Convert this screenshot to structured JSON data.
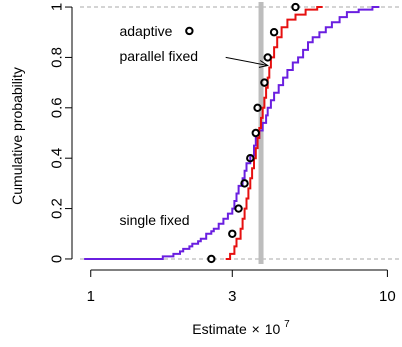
{
  "chart_data": {
    "type": "line",
    "title": "",
    "xlabel": "Estimate",
    "xlabel_multiplier": "×",
    "xlabel_base": "10",
    "xlabel_exponent": "7",
    "ylabel": "Cumulative probability",
    "xscale": "log",
    "xlim": [
      0.92,
      11.2
    ],
    "ylim": [
      -0.02,
      1.02
    ],
    "xticks": [
      1,
      3,
      10
    ],
    "xtick_labels": [
      "1",
      "3",
      "10"
    ],
    "yticks": [
      0,
      0.2,
      0.4,
      0.6,
      0.8,
      1
    ],
    "ytick_labels": [
      "0",
      "0.2",
      "0.4",
      "0.6",
      "0.8",
      "1"
    ],
    "ref_hlines": [
      0,
      1
    ],
    "true_value": 3.75,
    "annotations": [
      {
        "text": "adaptive",
        "x": 1.25,
        "y": 0.905
      },
      {
        "text": "parallel fixed",
        "x": 1.25,
        "y": 0.805
      },
      {
        "text": "single fixed",
        "x": 1.25,
        "y": 0.155
      }
    ],
    "arrow": {
      "from": [
        2.85,
        0.8
      ],
      "to": [
        3.95,
        0.768
      ]
    },
    "legend_marker": {
      "x": 2.15,
      "y": 0.905
    },
    "series": [
      {
        "key": "single",
        "color": "#6a1fe0",
        "points": [
          [
            0.95,
            0.0
          ],
          [
            1.7,
            0.0
          ],
          [
            1.75,
            0.01
          ],
          [
            1.9,
            0.02
          ],
          [
            2.0,
            0.03
          ],
          [
            2.05,
            0.04
          ],
          [
            2.15,
            0.05
          ],
          [
            2.2,
            0.06
          ],
          [
            2.3,
            0.07
          ],
          [
            2.35,
            0.08
          ],
          [
            2.45,
            0.1
          ],
          [
            2.55,
            0.11
          ],
          [
            2.6,
            0.12
          ],
          [
            2.7,
            0.14
          ],
          [
            2.8,
            0.16
          ],
          [
            2.9,
            0.18
          ],
          [
            3.0,
            0.2
          ],
          [
            3.05,
            0.23
          ],
          [
            3.1,
            0.26
          ],
          [
            3.15,
            0.29
          ],
          [
            3.25,
            0.32
          ],
          [
            3.3,
            0.35
          ],
          [
            3.35,
            0.38
          ],
          [
            3.45,
            0.41
          ],
          [
            3.55,
            0.45
          ],
          [
            3.6,
            0.48
          ],
          [
            3.7,
            0.51
          ],
          [
            3.8,
            0.54
          ],
          [
            3.9,
            0.57
          ],
          [
            3.95,
            0.6
          ],
          [
            4.05,
            0.63
          ],
          [
            4.15,
            0.66
          ],
          [
            4.3,
            0.69
          ],
          [
            4.45,
            0.72
          ],
          [
            4.6,
            0.75
          ],
          [
            4.8,
            0.78
          ],
          [
            5.0,
            0.8
          ],
          [
            5.2,
            0.83
          ],
          [
            5.4,
            0.86
          ],
          [
            5.6,
            0.88
          ],
          [
            5.9,
            0.9
          ],
          [
            6.2,
            0.92
          ],
          [
            6.5,
            0.94
          ],
          [
            6.9,
            0.96
          ],
          [
            7.3,
            0.98
          ],
          [
            8.0,
            0.99
          ],
          [
            8.9,
            1.0
          ],
          [
            9.4,
            1.0
          ]
        ]
      },
      {
        "key": "parallel",
        "color": "#e61010",
        "points": [
          [
            2.85,
            0.0
          ],
          [
            2.95,
            0.02
          ],
          [
            3.05,
            0.05
          ],
          [
            3.1,
            0.08
          ],
          [
            3.2,
            0.12
          ],
          [
            3.25,
            0.16
          ],
          [
            3.3,
            0.2
          ],
          [
            3.35,
            0.24
          ],
          [
            3.4,
            0.28
          ],
          [
            3.45,
            0.32
          ],
          [
            3.5,
            0.36
          ],
          [
            3.55,
            0.4
          ],
          [
            3.6,
            0.44
          ],
          [
            3.65,
            0.48
          ],
          [
            3.7,
            0.52
          ],
          [
            3.75,
            0.56
          ],
          [
            3.8,
            0.6
          ],
          [
            3.85,
            0.64
          ],
          [
            3.9,
            0.68
          ],
          [
            3.95,
            0.72
          ],
          [
            4.0,
            0.76
          ],
          [
            4.05,
            0.8
          ],
          [
            4.15,
            0.84
          ],
          [
            4.25,
            0.88
          ],
          [
            4.4,
            0.92
          ],
          [
            4.6,
            0.95
          ],
          [
            4.9,
            0.97
          ],
          [
            5.3,
            0.99
          ],
          [
            5.8,
            1.0
          ],
          [
            6.05,
            1.0
          ]
        ]
      }
    ],
    "adaptive_points": [
      [
        2.55,
        0.0
      ],
      [
        3.0,
        0.1
      ],
      [
        3.15,
        0.2
      ],
      [
        3.3,
        0.3
      ],
      [
        3.45,
        0.4
      ],
      [
        3.6,
        0.5
      ],
      [
        3.65,
        0.6
      ],
      [
        3.85,
        0.7
      ],
      [
        3.95,
        0.8
      ],
      [
        4.15,
        0.9
      ],
      [
        4.9,
        1.0
      ]
    ]
  }
}
